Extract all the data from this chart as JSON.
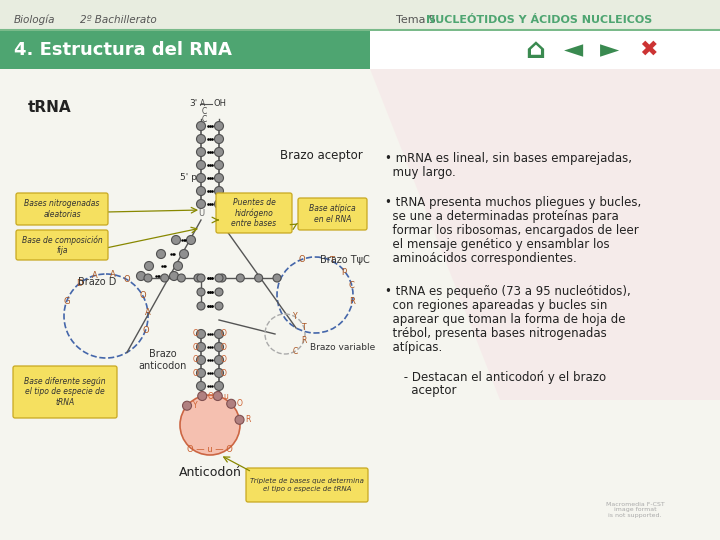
{
  "bg_color": "#e8ede0",
  "title_bar_color": "#4ea571",
  "title_text": "4. Estructura del RNA",
  "title_text_color": "#ffffff",
  "header_biologia": "Biología",
  "header_bachillerato": "2º Bachillerato",
  "header_tema_normal": "Tema 5. ",
  "header_tema_bold": "NUCLEÓTIDOS Y ÁCIDOS NUCLEICOS",
  "header_color_normal": "#555555",
  "header_color_bold": "#4ea571",
  "slide_bg": "#f5f5ef",
  "right_bg": "#faf0f0",
  "trna_label": "tRNA",
  "brazo_aceptor_label": "Brazo aceptor",
  "anticodon_label": "Anticodoń",
  "bullet1_head": "• mRNA es lineal, sin bases emparejadas,",
  "bullet1_body": "  muy largo.",
  "bullet2_head": "• tRNA presenta muchos pliegues y bucles,",
  "bullet2_line2": "  se une a determinadas proteínas para",
  "bullet2_line3": "  formar los ribosomas, encargados de leer",
  "bullet2_line4": "  el mensaje genético y ensamblar los",
  "bullet2_line5": "  aminoácidos correspondientes.",
  "bullet3_head": "• tRNA es pequeño (73 a 95 nucleótidos),",
  "bullet3_line2": "  con regiones apareadas y bucles sin",
  "bullet3_line3": "  aparear que toman la forma de hoja de",
  "bullet3_line4": "  trébol, presenta bases nitrogenadas",
  "bullet3_line5": "  atípicas.",
  "bullet4": "     - Destacan el anticodoń y el brazo",
  "bullet4b": "       aceptor",
  "text_color": "#222222",
  "yellow_box_color": "#f5e060",
  "yellow_box_border": "#c8a820",
  "node_color": "#909090",
  "node_edge": "#505050",
  "line_color": "#555555",
  "dashed_color": "#4466aa",
  "pink_loop_color": "#f5c0b0",
  "pink_loop_edge": "#cc6644",
  "nav_home_color": "#3a8a50",
  "nav_left_color": "#3a8a50",
  "nav_right_color": "#3a8a50",
  "nav_x_color": "#cc3333",
  "watermark": "Macromedia F-CST\nimage format\nis not supported."
}
